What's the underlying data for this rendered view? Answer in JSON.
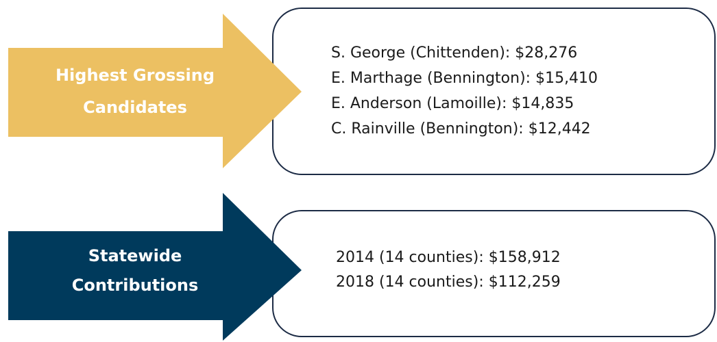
{
  "sections": [
    {
      "label_lines": [
        "Highest Grossing",
        "Candidates"
      ],
      "items": [
        "S. George (Chittenden): $28,276",
        "E. Marthage (Bennington): $15,410",
        "E. Anderson (Lamoille): $14,835",
        "C. Rainville (Bennington): $12,442"
      ]
    },
    {
      "label_lines": [
        "Statewide",
        "Contributions"
      ],
      "items": [
        "2014 (14 counties): $158,912",
        "2018 (14 counties): $112,259"
      ]
    }
  ]
}
